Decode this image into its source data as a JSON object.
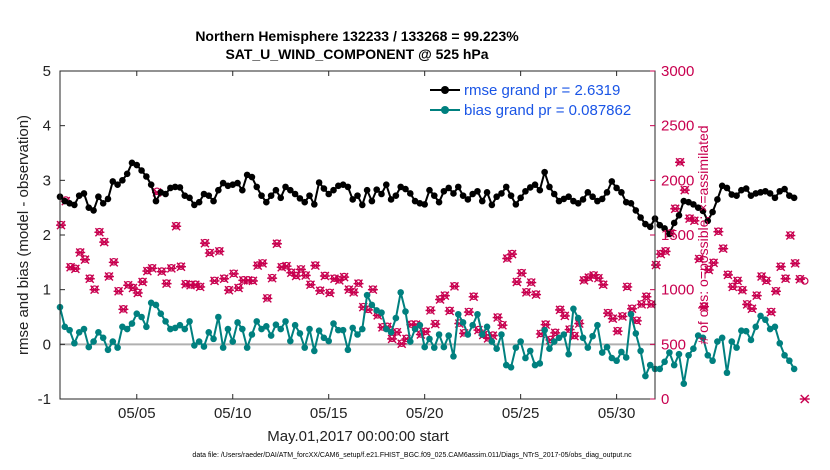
{
  "chart_data": {
    "type": "line",
    "title_line1": "Northern Hemisphere 132233 / 133268 = 99.223%",
    "title_line2": "SAT_U_WIND_COMPONENT @ 525 hPa",
    "xlabel": "May.01,2017 00:00:00 start",
    "ylabel": "rmse and bias (model - observation)",
    "ylabel_right": "# of obs: o=possible; ×=assimilated",
    "footnote": "data file: /Users/raeder/DAI/ATM_forcXX/CAM6_setup/f.e21.FHIST_BGC.f09_025.CAM6assim.011/Diags_NTrS_2017-05/obs_diag_output.nc",
    "xlim": [
      1,
      32
    ],
    "ylim": [
      -1,
      5
    ],
    "ylim_right": [
      0,
      3000
    ],
    "x_ticks": [
      5,
      10,
      15,
      20,
      25,
      30
    ],
    "x_tick_labels": [
      "05/05",
      "05/10",
      "05/15",
      "05/20",
      "05/25",
      "05/30"
    ],
    "y_ticks": [
      -1,
      0,
      1,
      2,
      3,
      4,
      5
    ],
    "y_tick_labels": [
      "-1",
      "0",
      "1",
      "2",
      "3",
      "4",
      "5"
    ],
    "y_right_ticks": [
      0,
      500,
      1000,
      1500,
      2000,
      2500,
      3000
    ],
    "y_right_tick_labels": [
      "0",
      "500",
      "1000",
      "1500",
      "2000",
      "2500",
      "3000"
    ],
    "zero_line": 0,
    "legend": {
      "rmse_label": "rmse grand pr = 2.6319",
      "bias_label": "bias grand pr = 0.087862"
    },
    "colors": {
      "rmse": "#000000",
      "bias": "#00807f",
      "obs": "#c8004f",
      "zero_line": "#b0b0b0",
      "legend_text": "#1a55e6"
    },
    "x_start": 1.0,
    "x_step": 0.25,
    "series": [
      {
        "name": "rmse",
        "values": [
          2.7,
          2.62,
          2.58,
          2.55,
          2.72,
          2.76,
          2.5,
          2.45,
          2.7,
          2.58,
          2.66,
          2.98,
          2.92,
          3.0,
          3.12,
          3.32,
          3.28,
          3.18,
          3.07,
          2.92,
          2.62,
          2.78,
          2.75,
          2.86,
          2.88,
          2.87,
          2.72,
          2.68,
          2.55,
          2.6,
          2.75,
          2.72,
          2.62,
          2.82,
          2.95,
          2.9,
          2.92,
          2.95,
          2.82,
          3.1,
          3.06,
          2.88,
          2.72,
          2.6,
          2.72,
          2.82,
          2.68,
          2.88,
          2.82,
          2.75,
          2.67,
          2.6,
          2.72,
          2.56,
          2.96,
          2.85,
          2.75,
          2.82,
          2.9,
          2.92,
          2.88,
          2.65,
          2.72,
          2.55,
          2.82,
          2.62,
          2.83,
          2.75,
          2.92,
          2.65,
          2.72,
          2.88,
          2.84,
          2.76,
          2.62,
          2.58,
          2.56,
          2.82,
          2.72,
          2.6,
          2.8,
          2.86,
          2.76,
          2.88,
          2.72,
          2.65,
          2.75,
          2.8,
          2.62,
          2.78,
          2.55,
          2.7,
          2.76,
          2.88,
          2.72,
          2.56,
          2.68,
          2.8,
          2.87,
          2.92,
          2.82,
          3.15,
          2.88,
          2.75,
          2.62,
          2.66,
          2.7,
          2.62,
          2.58,
          2.65,
          2.78,
          2.7,
          2.62,
          2.66,
          2.78,
          2.98,
          2.86,
          2.78,
          2.6,
          2.58,
          2.45,
          2.32,
          2.2,
          2.15,
          2.3,
          2.18,
          2.12,
          2.02,
          2.22,
          2.36,
          2.62,
          2.6,
          2.56,
          2.5,
          2.44,
          2.26,
          2.42,
          2.65,
          2.9,
          2.86,
          2.74,
          2.72,
          2.82,
          2.85,
          2.72,
          2.76,
          2.78,
          2.8,
          2.76,
          2.68,
          2.8,
          2.84,
          2.72,
          2.68
        ]
      },
      {
        "name": "bias",
        "values": [
          0.68,
          0.32,
          0.26,
          0.02,
          0.22,
          0.28,
          -0.05,
          0.05,
          0.22,
          0.12,
          -0.1,
          0.05,
          -0.06,
          0.32,
          0.28,
          0.38,
          0.56,
          0.5,
          0.32,
          0.76,
          0.72,
          0.56,
          0.42,
          0.28,
          0.3,
          0.35,
          0.28,
          0.42,
          -0.02,
          0.05,
          -0.04,
          0.22,
          0.1,
          0.5,
          -0.06,
          0.28,
          0.05,
          0.4,
          0.28,
          -0.06,
          0.18,
          0.42,
          0.28,
          0.33,
          0.16,
          0.36,
          0.28,
          0.42,
          0.06,
          0.35,
          0.2,
          -0.06,
          0.28,
          -0.12,
          0.25,
          0.12,
          0.06,
          0.38,
          0.26,
          0.26,
          -0.1,
          0.3,
          0.18,
          0.28,
          0.9,
          0.72,
          0.62,
          0.58,
          0.28,
          0.22,
          0.48,
          0.95,
          0.6,
          0.05,
          0.28,
          0.35,
          -0.05,
          0.1,
          -0.06,
          0.18,
          -0.05,
          0.16,
          -0.22,
          0.55,
          0.4,
          0.18,
          0.35,
          0.55,
          0.18,
          0.32,
          0.05,
          -0.08,
          0.18,
          -0.38,
          -0.42,
          -0.06,
          0.05,
          -0.25,
          -0.12,
          -0.38,
          -0.35,
          0.26,
          -0.08,
          0.05,
          0.12,
          0.18,
          -0.18,
          0.65,
          0.48,
          0.12,
          -0.06,
          0.15,
          0.35,
          -0.15,
          -0.05,
          -0.25,
          -0.3,
          -0.14,
          -0.24,
          0.55,
          0.2,
          -0.12,
          -0.58,
          -0.38,
          -0.45,
          -0.45,
          -0.32,
          -0.15,
          -0.38,
          -0.18,
          -0.72,
          -0.2,
          -0.08,
          0.16,
          0.12,
          -0.2,
          -0.3,
          0.05,
          0.12,
          -0.52,
          0.05,
          -0.06,
          0.25,
          0.24,
          0.08,
          0.32,
          0.52,
          0.45,
          0.28,
          0.32,
          0.02,
          -0.2,
          -0.3,
          -0.45
        ]
      },
      {
        "name": "obs_possible",
        "axis": "right",
        "values": [
          1595,
          1820,
          1210,
          1195,
          1345,
          1280,
          1105,
          1005,
          1530,
          1440,
          1125,
          1255,
          990,
          825,
          1045,
          1020,
          975,
          1075,
          1175,
          1200,
          1900,
          1170,
          1060,
          1200,
          1585,
          1215,
          1055,
          1045,
          1050,
          1030,
          1430,
          1340,
          1085,
          1355,
          1105,
          1000,
          1150,
          1020,
          1090,
          1090,
          1085,
          1225,
          1245,
          925,
          1110,
          1425,
          1210,
          1220,
          1160,
          1130,
          1190,
          1135,
          1050,
          1225,
          995,
          1130,
          975,
          1105,
          1090,
          1120,
          1005,
          980,
          1060,
          845,
          820,
          1005,
          770,
          660,
          665,
          555,
          615,
          510,
          555,
          685,
          685,
          595,
          620,
          815,
          690,
          915,
          950,
          810,
          1035,
          695,
          605,
          800,
          940,
          635,
          590,
          560,
          585,
          750,
          680,
          1290,
          1330,
          1075,
          1155,
          980,
          1070,
          960,
          600,
          685,
          545,
          610,
          820,
          765,
          640,
          580,
          695,
          1090,
          1115,
          1135,
          1110,
          1050,
          790,
          740,
          625,
          760,
          1030,
          830,
          720,
          870,
          940,
          870,
          1230,
          1330,
          1355,
          1520,
          1745,
          2170,
          1915,
          1655,
          1635,
          1285,
          850,
          1185,
          1250,
          1535,
          1380,
          1140,
          1030,
          1085,
          1000,
          870,
          830,
          950,
          1125,
          1085,
          800,
          990,
          1215,
          1105,
          1500,
          1245,
          1100,
          1080
        ]
      },
      {
        "name": "obs_assimilated",
        "axis": "right",
        "values": [
          1590,
          1810,
          1205,
          1190,
          1340,
          1275,
          1100,
          1000,
          1525,
          1435,
          1120,
          1250,
          985,
          820,
          1040,
          1015,
          970,
          1070,
          1170,
          1195,
          1890,
          1165,
          1055,
          1195,
          1580,
          1210,
          1050,
          1040,
          1045,
          1025,
          1425,
          1335,
          1080,
          1350,
          1100,
          995,
          1145,
          1015,
          1085,
          1085,
          1080,
          1220,
          1240,
          920,
          1105,
          1420,
          1205,
          1215,
          1155,
          1125,
          1185,
          1130,
          1045,
          1220,
          990,
          1125,
          970,
          1100,
          1085,
          1115,
          1000,
          975,
          1055,
          840,
          815,
          1000,
          765,
          655,
          660,
          550,
          610,
          505,
          550,
          680,
          680,
          590,
          615,
          810,
          685,
          910,
          945,
          805,
          1030,
          690,
          600,
          795,
          935,
          630,
          585,
          555,
          580,
          745,
          675,
          1285,
          1325,
          1070,
          1150,
          975,
          1065,
          955,
          595,
          680,
          540,
          605,
          815,
          760,
          635,
          575,
          690,
          1085,
          1110,
          1130,
          1105,
          1045,
          785,
          735,
          620,
          755,
          1025,
          825,
          715,
          865,
          935,
          865,
          1225,
          1325,
          1350,
          1515,
          1740,
          2165,
          1910,
          1650,
          1630,
          1280,
          845,
          1180,
          1245,
          1530,
          1375,
          1135,
          1025,
          1080,
          995,
          865,
          825,
          945,
          1120,
          1080,
          795,
          985,
          1210,
          1100,
          1495,
          1240,
          1095,
          0
        ]
      }
    ]
  }
}
